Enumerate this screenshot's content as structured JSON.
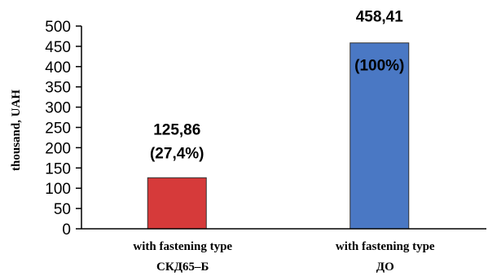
{
  "chart_data": {
    "type": "bar",
    "ylabel": "thousand, UAH",
    "ylim": [
      0,
      500
    ],
    "yticks": [
      0,
      50,
      100,
      150,
      200,
      250,
      300,
      350,
      400,
      450,
      500
    ],
    "grid": false,
    "categories": [
      [
        "with fastening type",
        "СКД65–Б"
      ],
      [
        "with fastening type",
        "ДО"
      ]
    ],
    "values": [
      125.86,
      458.41
    ],
    "value_labels": [
      "125,86",
      "458,41"
    ],
    "percent_labels": [
      "(27,4%)",
      "(100%)"
    ],
    "colors": [
      "#d63a3a",
      "#4a78c4"
    ],
    "bar_border_color": "#333333"
  }
}
